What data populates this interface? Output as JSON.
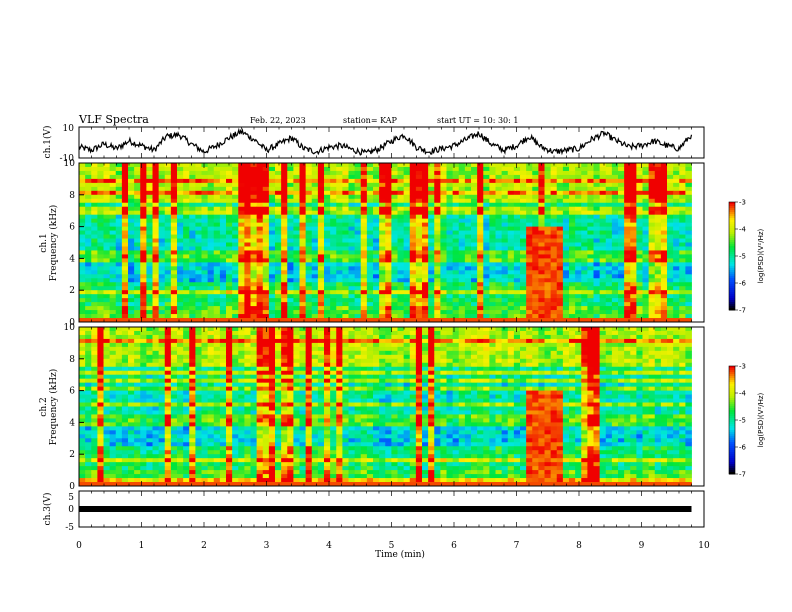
{
  "header": {
    "title": "VLF Spectra",
    "date": "Feb. 22, 2023",
    "station": "station= KAP",
    "start": "start  UT  =   10: 30: 1"
  },
  "chart_data": [
    {
      "type": "line",
      "panel": "ch1-waveform",
      "ylabel": "ch.1(V)",
      "ylim": [
        -10,
        10
      ],
      "yticks": [
        "10",
        "-10"
      ],
      "xlim": [
        0,
        10
      ],
      "series": [
        {
          "x": [
            0,
            0.2,
            0.4,
            0.6,
            0.8,
            1.0,
            1.2,
            1.4,
            1.6,
            1.8,
            2.0,
            2.2,
            2.4,
            2.6,
            2.8,
            3.0,
            3.2,
            3.4,
            3.6,
            3.8,
            4.0,
            4.2,
            4.4,
            4.6,
            4.8,
            5.0,
            5.2,
            5.4,
            5.6,
            5.8,
            6.0,
            6.2,
            6.4,
            6.6,
            6.8,
            7.0,
            7.2,
            7.4,
            7.6,
            7.8,
            8.0,
            8.2,
            8.4,
            8.6,
            8.8,
            9.0,
            9.2,
            9.4,
            9.6,
            9.8
          ],
          "values": [
            -3,
            -5,
            -1,
            -4,
            1,
            -2,
            -5,
            4,
            5,
            -1,
            -6,
            -2,
            3,
            7,
            2,
            -5,
            -1,
            3,
            -4,
            -6,
            -3,
            -2,
            -5,
            -7,
            -4,
            1,
            5,
            -3,
            -6,
            -4,
            -2,
            2,
            6,
            -1,
            -5,
            -2,
            4,
            -3,
            -6,
            -5,
            -4,
            2,
            6,
            1,
            -3,
            -2,
            1,
            -2,
            -4,
            5
          ]
        }
      ]
    },
    {
      "type": "heatmap",
      "panel": "ch1-spectrogram",
      "ylabel": "ch.1\nFrequency (kHz)",
      "ylim": [
        0,
        10
      ],
      "yticks": [
        "0",
        "2",
        "4",
        "6",
        "8",
        "10"
      ],
      "xlim": [
        0,
        10
      ],
      "colorbar": {
        "label": "log(PSD)(V²/Hz)",
        "range": [
          -7,
          -3
        ],
        "ticks": [
          "-3",
          "-4",
          "-5",
          "-6",
          "-7"
        ]
      }
    },
    {
      "type": "heatmap",
      "panel": "ch2-spectrogram",
      "ylabel": "ch.2\nFrequency (kHz)",
      "ylim": [
        0,
        10
      ],
      "yticks": [
        "0",
        "2",
        "4",
        "6",
        "8",
        "10"
      ],
      "xlim": [
        0,
        10
      ],
      "colorbar": {
        "label": "log(PSD)(V²/Hz)",
        "range": [
          -7,
          -3
        ],
        "ticks": [
          "-3",
          "-4",
          "-5",
          "-6",
          "-7"
        ]
      }
    },
    {
      "type": "line",
      "panel": "ch3-waveform",
      "ylabel": "ch.3(V)",
      "ylim": [
        -5,
        5
      ],
      "yticks": [
        "5",
        "0",
        "-5"
      ],
      "xlim": [
        0,
        10
      ],
      "xlabel": "Time  (min)",
      "xticks": [
        "0",
        "1",
        "2",
        "3",
        "4",
        "5",
        "6",
        "7",
        "8",
        "9",
        "10"
      ],
      "series": [
        {
          "x": [
            0,
            9.8
          ],
          "values": [
            0,
            0
          ]
        }
      ]
    }
  ],
  "colors": {
    "colorbar": [
      "#ff0000",
      "#ffff00",
      "#00ff00",
      "#00ffff",
      "#0000ff",
      "#000000"
    ]
  }
}
